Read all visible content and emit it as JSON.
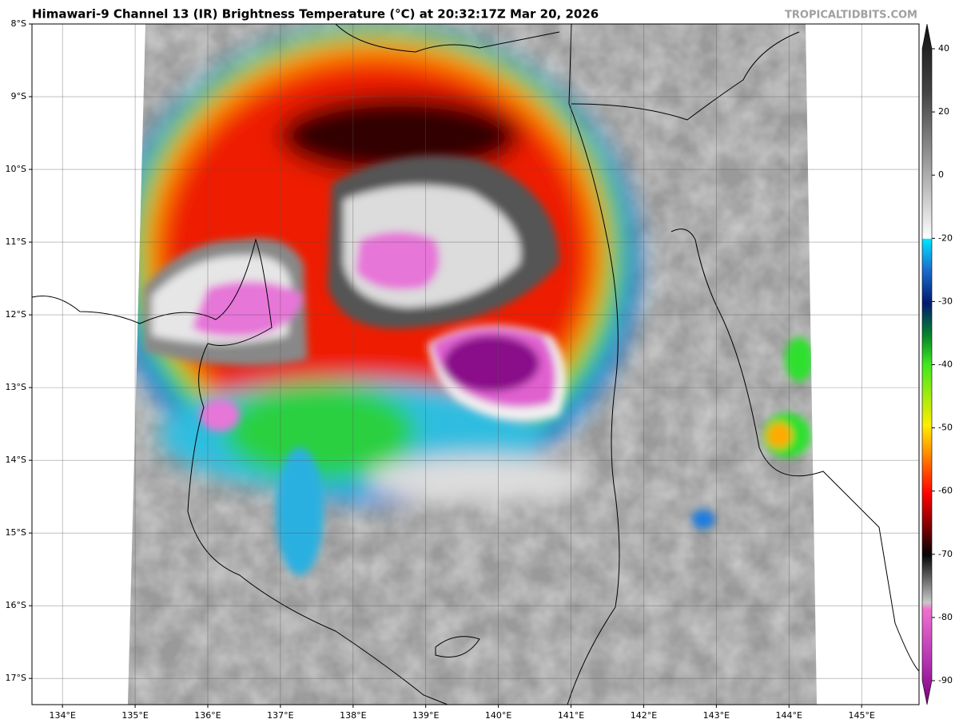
{
  "chart_data": {
    "type": "map",
    "title": "Himawari-9 Channel 13 (IR) Brightness Temperature (°C) at 20:32:17Z Mar 20, 2026",
    "source": "TROPICALTIDBITS.COM",
    "xlim": [
      133.58,
      145.79
    ],
    "ylim": [
      -17.36,
      -8
    ],
    "xticks": [
      {
        "value": 134,
        "label": "134°E"
      },
      {
        "value": 135,
        "label": "135°E"
      },
      {
        "value": 136,
        "label": "136°E"
      },
      {
        "value": 137,
        "label": "137°E"
      },
      {
        "value": 138,
        "label": "138°E"
      },
      {
        "value": 139,
        "label": "139°E"
      },
      {
        "value": 140,
        "label": "140°E"
      },
      {
        "value": 141,
        "label": "141°E"
      },
      {
        "value": 142,
        "label": "142°E"
      },
      {
        "value": 143,
        "label": "143°E"
      },
      {
        "value": 144,
        "label": "144°E"
      },
      {
        "value": 145,
        "label": "145°E"
      }
    ],
    "yticks": [
      {
        "value": -8,
        "label": "8°S"
      },
      {
        "value": -9,
        "label": "9°S"
      },
      {
        "value": -10,
        "label": "10°S"
      },
      {
        "value": -11,
        "label": "11°S"
      },
      {
        "value": -12,
        "label": "12°S"
      },
      {
        "value": -13,
        "label": "13°S"
      },
      {
        "value": -14,
        "label": "14°S"
      },
      {
        "value": -15,
        "label": "15°S"
      },
      {
        "value": -16,
        "label": "16°S"
      },
      {
        "value": -17,
        "label": "17°S"
      }
    ],
    "grid": true,
    "colorbar": {
      "ticks": [
        40,
        20,
        0,
        -20,
        -30,
        -40,
        -50,
        -60,
        -70,
        -80,
        -90
      ]
    }
  }
}
